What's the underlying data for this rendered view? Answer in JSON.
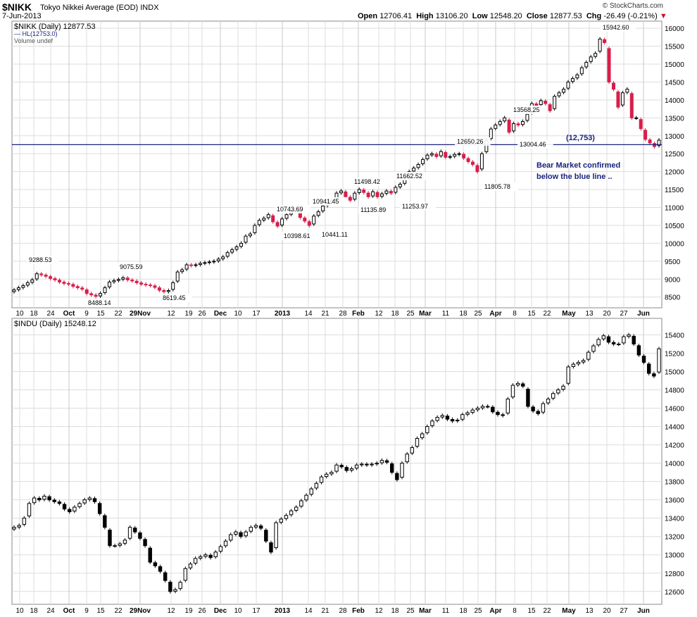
{
  "header": {
    "symbol": "$NIKK",
    "name": "Tokyo Nikkei Average (EOD)",
    "exchange": "INDX",
    "date": "7-Jun-2013",
    "source": "© StockCharts.com",
    "open_label": "Open",
    "open": "12706.41",
    "high_label": "High",
    "high": "13106.20",
    "low_label": "Low",
    "low": "12548.20",
    "close_label": "Close",
    "close": "12877.53",
    "chg_label": "Chg",
    "chg": "-26.49 (-0.21%)"
  },
  "colors": {
    "up": "#000000",
    "down": "#d81e4a",
    "hline": "#1a237e",
    "grid": "#dddddd",
    "annotation": "#1a237e"
  },
  "chart_data": [
    {
      "type": "candlestick",
      "title": "$NIKK (Daily) 12877.53",
      "legend": [
        "HL(12753.0)",
        "Volume undef"
      ],
      "ylim": [
        8200,
        16200
      ],
      "yticks": [
        8500,
        9000,
        9500,
        10000,
        10500,
        11000,
        11500,
        12000,
        12500,
        13000,
        13500,
        14000,
        14500,
        15000,
        15500,
        16000
      ],
      "xticks": [
        "10",
        "18",
        "24",
        "Oct",
        "9",
        "15",
        "22",
        "29Nov",
        "12",
        "19",
        "26",
        "Dec",
        "10",
        "17",
        "2013",
        "14",
        "21",
        "28",
        "Feb",
        "12",
        "18",
        "25",
        "Mar",
        "11",
        "18",
        "25",
        "Apr",
        "8",
        "15",
        "22",
        "May",
        "13",
        "20",
        "27",
        "Jun"
      ],
      "horizontal_line": {
        "value": 12753,
        "label": "(12,753)"
      },
      "annotation": [
        "Bear Market confirmed",
        "below the blue line .."
      ],
      "value_labels": [
        "9288.53",
        "8488.14",
        "9075.59",
        "8619.45",
        "10743.69",
        "10398.61",
        "10941.45",
        "10441.11",
        "11498.42",
        "11135.89",
        "11662.52",
        "11253.97",
        "12650.26",
        "11805.78",
        "13568.25",
        "13004.46",
        "15942.60"
      ],
      "closes": [
        8700,
        8760,
        8820,
        8900,
        8980,
        9150,
        9120,
        9080,
        9020,
        8980,
        8920,
        8880,
        8860,
        8800,
        8760,
        8720,
        8600,
        8560,
        8520,
        8600,
        8760,
        8920,
        8960,
        8990,
        9040,
        8980,
        8950,
        8900,
        8860,
        8840,
        8820,
        8770,
        8690,
        8650,
        8680,
        8900,
        9200,
        9260,
        9400,
        9380,
        9400,
        9440,
        9460,
        9480,
        9500,
        9560,
        9620,
        9740,
        9820,
        9900,
        10000,
        10200,
        10260,
        10500,
        10640,
        10700,
        10800,
        10600,
        10480,
        10680,
        10800,
        10880,
        10960,
        10720,
        10620,
        10500,
        10760,
        10880,
        11040,
        11150,
        11200,
        11400,
        11460,
        11300,
        11200,
        11400,
        11500,
        11420,
        11300,
        11440,
        11300,
        11380,
        11460,
        11400,
        11560,
        11650,
        11800,
        12000,
        12100,
        12200,
        12340,
        12460,
        12500,
        12420,
        12560,
        12400,
        12420,
        12480,
        12500,
        12380,
        12280,
        12200,
        12000,
        12500,
        12880,
        13190,
        13300,
        13400,
        13500,
        13100,
        13340,
        13300,
        13400,
        13600,
        13900,
        13850,
        13980,
        13900,
        13700,
        14100,
        14200,
        14300,
        14500,
        14600,
        14700,
        14900,
        15050,
        15200,
        15300,
        15700,
        15600,
        14500,
        14300,
        13800,
        14200,
        14300,
        13500,
        13500,
        13200,
        12900,
        12800,
        12700,
        12878
      ]
    },
    {
      "type": "candlestick",
      "title": "$INDU (Daily) 15248.12",
      "ylim": [
        12460,
        15580
      ],
      "yticks": [
        12600,
        12800,
        13000,
        13200,
        13400,
        13600,
        13800,
        14000,
        14200,
        14400,
        14600,
        14800,
        15000,
        15200,
        15400
      ],
      "xticks": [
        "10",
        "18",
        "24",
        "Oct",
        "9",
        "15",
        "22",
        "29Nov",
        "12",
        "19",
        "26",
        "Dec",
        "10",
        "17",
        "2013",
        "14",
        "21",
        "28",
        "Feb",
        "12",
        "18",
        "25",
        "Mar",
        "11",
        "18",
        "25",
        "Apr",
        "8",
        "15",
        "22",
        "May",
        "13",
        "20",
        "27",
        "Jun"
      ],
      "closes": [
        13300,
        13320,
        13400,
        13560,
        13620,
        13600,
        13640,
        13600,
        13580,
        13560,
        13500,
        13470,
        13520,
        13560,
        13600,
        13620,
        13580,
        13450,
        13300,
        13100,
        13100,
        13120,
        13160,
        13300,
        13250,
        13180,
        13100,
        12920,
        12880,
        12820,
        12720,
        12600,
        12620,
        12700,
        12850,
        12900,
        12960,
        12980,
        13000,
        12970,
        13030,
        13090,
        13150,
        13220,
        13250,
        13200,
        13250,
        13300,
        13320,
        13290,
        13150,
        13030,
        13350,
        13390,
        13430,
        13480,
        13520,
        13590,
        13650,
        13720,
        13780,
        13850,
        13880,
        13900,
        13980,
        13960,
        13920,
        13940,
        13980,
        13990,
        13980,
        13990,
        14000,
        14030,
        14010,
        13900,
        13820,
        14000,
        14100,
        14170,
        14270,
        14320,
        14400,
        14460,
        14500,
        14520,
        14480,
        14460,
        14470,
        14530,
        14550,
        14580,
        14600,
        14620,
        14620,
        14560,
        14530,
        14520,
        14700,
        14850,
        14870,
        14840,
        14620,
        14570,
        14540,
        14650,
        14700,
        14760,
        14800,
        14840,
        15050,
        15080,
        15100,
        15120,
        15210,
        15280,
        15350,
        15390,
        15320,
        15300,
        15300,
        15380,
        15400,
        15300,
        15180,
        15100,
        14980,
        14950,
        15248
      ]
    }
  ]
}
